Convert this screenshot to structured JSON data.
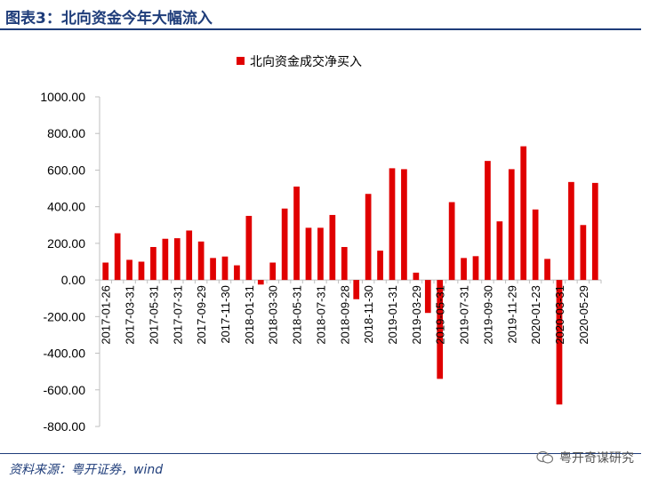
{
  "header": {
    "title": "图表3：北向资金今年大幅流入"
  },
  "footer": {
    "source": "资料来源：粤开证券，wind",
    "watermark": "粤开奇谋研究"
  },
  "colors": {
    "bar": "#e00000",
    "title": "#1f3d7a",
    "axis": "#bfbfbf"
  },
  "chart_data": {
    "type": "bar",
    "legend": "北向资金成交净买入",
    "legend_position": "top",
    "ylim": [
      -800,
      1000
    ],
    "yticks": [
      "1000.00",
      "800.00",
      "600.00",
      "400.00",
      "200.00",
      "0.00",
      "-200.00",
      "-400.00",
      "-600.00",
      "-800.00"
    ],
    "ytick_values": [
      1000,
      800,
      600,
      400,
      200,
      0,
      -200,
      -400,
      -600,
      -800
    ],
    "grid": false,
    "xticks": [
      "2017-01-26",
      "2017-03-31",
      "2017-05-31",
      "2017-07-31",
      "2017-09-29",
      "2017-11-30",
      "2018-01-31",
      "2018-03-30",
      "2018-05-31",
      "2018-07-31",
      "2018-09-28",
      "2018-11-30",
      "2019-01-31",
      "2019-03-29",
      "2019-05-31",
      "2019-07-31",
      "2019-09-30",
      "2019-11-29",
      "2020-01-23",
      "2020-03-31",
      "2020-05-29"
    ],
    "values": [
      95,
      255,
      110,
      100,
      180,
      225,
      228,
      270,
      210,
      120,
      128,
      80,
      350,
      -25,
      95,
      390,
      510,
      285,
      285,
      355,
      180,
      -105,
      470,
      160,
      610,
      605,
      40,
      -180,
      -540,
      425,
      120,
      130,
      650,
      320,
      605,
      730,
      385,
      115,
      -680,
      535,
      300,
      530
    ]
  }
}
